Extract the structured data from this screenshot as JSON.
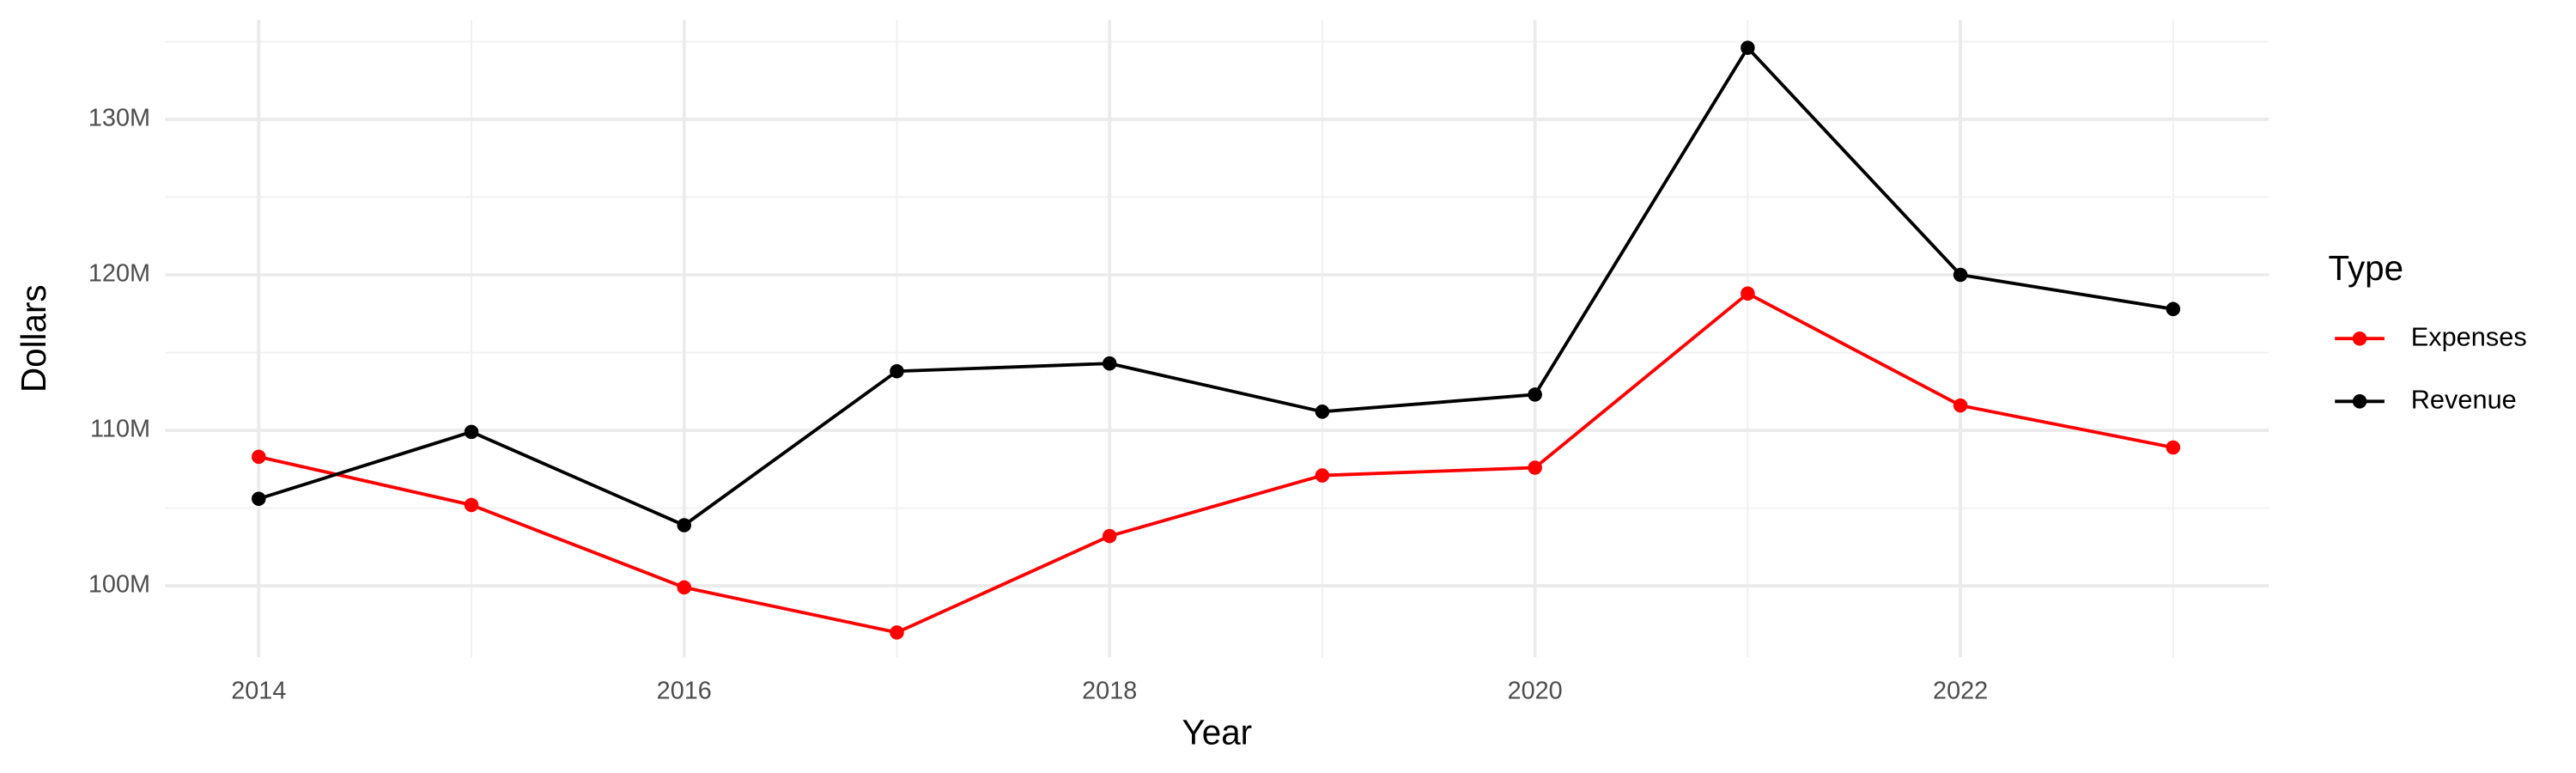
{
  "chart_data": {
    "type": "line",
    "x_label": "Year",
    "y_label": "Dollars",
    "legend_title": "Type",
    "legend_position": "right",
    "grid": true,
    "x": [
      2014,
      2015,
      2016,
      2017,
      2018,
      2019,
      2020,
      2021,
      2022,
      2023
    ],
    "series": [
      {
        "name": "Expenses",
        "color": "#ff0000",
        "values": [
          108300000,
          105200000,
          99900000,
          97000000,
          103200000,
          107100000,
          107600000,
          118800000,
          111600000,
          108900000
        ]
      },
      {
        "name": "Revenue",
        "color": "#000000",
        "values": [
          105600000,
          109900000,
          103900000,
          113800000,
          114300000,
          111200000,
          112300000,
          134600000,
          120000000,
          117800000
        ]
      }
    ],
    "xlim": [
      2013.56,
      2023.45
    ],
    "ylim": [
      95400000,
      136400000
    ],
    "xticks": [
      2014,
      2016,
      2018,
      2020,
      2022
    ],
    "yticks": [
      {
        "value": 100000000,
        "label": "100M"
      },
      {
        "value": 110000000,
        "label": "110M"
      },
      {
        "value": 120000000,
        "label": "120M"
      },
      {
        "value": 130000000,
        "label": "130M"
      }
    ],
    "minor_xticks": [
      2015,
      2017,
      2019,
      2021,
      2023
    ],
    "minor_yticks": [
      105000000,
      115000000,
      125000000,
      135000000
    ]
  }
}
